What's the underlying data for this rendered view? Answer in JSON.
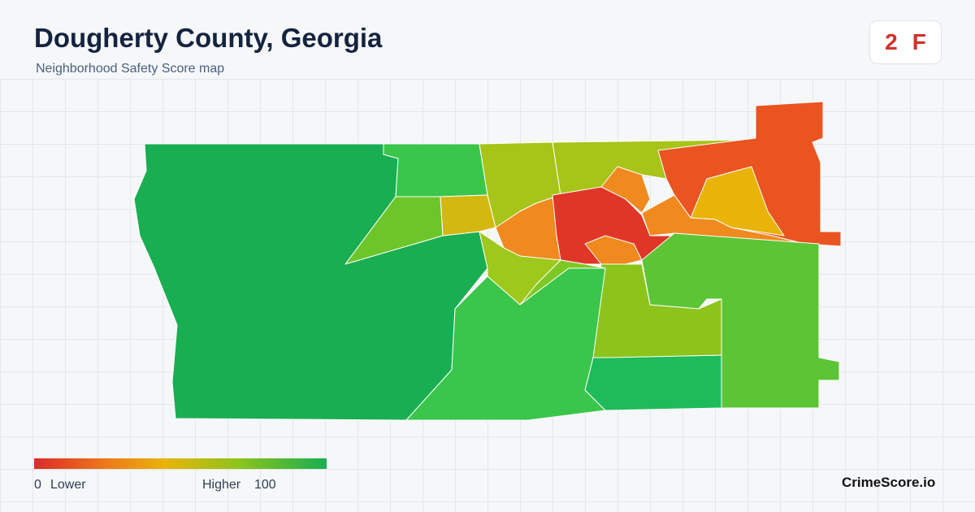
{
  "header": {
    "title": "Dougherty County, Georgia",
    "subtitle": "Neighborhood Safety Score map"
  },
  "badge": {
    "score": 2,
    "grade": "F"
  },
  "legend": {
    "min": 0,
    "min_label": "Lower",
    "max_label": "Higher",
    "max": 100
  },
  "brand": "CrimeScore.io"
}
